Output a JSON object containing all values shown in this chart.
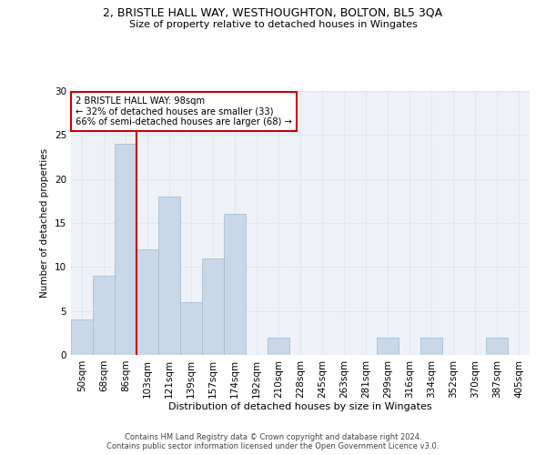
{
  "title1": "2, BRISTLE HALL WAY, WESTHOUGHTON, BOLTON, BL5 3QA",
  "title2": "Size of property relative to detached houses in Wingates",
  "xlabel": "Distribution of detached houses by size in Wingates",
  "ylabel": "Number of detached properties",
  "categories": [
    "50sqm",
    "68sqm",
    "86sqm",
    "103sqm",
    "121sqm",
    "139sqm",
    "157sqm",
    "174sqm",
    "192sqm",
    "210sqm",
    "228sqm",
    "245sqm",
    "263sqm",
    "281sqm",
    "299sqm",
    "316sqm",
    "334sqm",
    "352sqm",
    "370sqm",
    "387sqm",
    "405sqm"
  ],
  "values": [
    4,
    9,
    24,
    12,
    18,
    6,
    11,
    16,
    0,
    2,
    0,
    0,
    0,
    0,
    2,
    0,
    2,
    0,
    0,
    2,
    0
  ],
  "bar_color": "#c8d8e8",
  "bar_edge_color": "#a0b8d0",
  "vline_color": "#cc0000",
  "annotation_text": "2 BRISTLE HALL WAY: 98sqm\n← 32% of detached houses are smaller (33)\n66% of semi-detached houses are larger (68) →",
  "annotation_box_color": "#ffffff",
  "annotation_box_edge_color": "#cc0000",
  "footer_text": "Contains HM Land Registry data © Crown copyright and database right 2024.\nContains public sector information licensed under the Open Government Licence v3.0.",
  "ylim": [
    0,
    30
  ],
  "grid_color": "#dce8f0",
  "bg_color": "#eef2f8"
}
